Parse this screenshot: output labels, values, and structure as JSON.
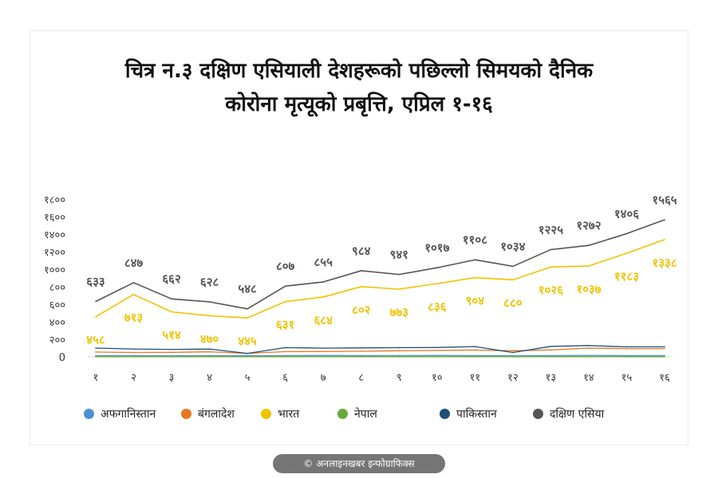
{
  "title_line1": "चित्र न.३ दक्षिण एसियाली देशहरूको पछिल्लो सिमयको दैनिक",
  "title_line2": "कोरोना मृत्यूको प्रबृत्ति, एप्रिल १-१६",
  "credit": "© अनलाइनखबर इन्फोग्राफिक्स",
  "chart_data": {
    "type": "line",
    "x": [
      "१",
      "२",
      "३",
      "४",
      "५",
      "६",
      "७",
      "८",
      "९",
      "१०",
      "११",
      "१२",
      "१३",
      "१४",
      "१५",
      "१६"
    ],
    "ylim": [
      0,
      1800
    ],
    "yticks": [
      {
        "value": 0,
        "label": "0"
      },
      {
        "value": 200,
        "label": "२००"
      },
      {
        "value": 400,
        "label": "४००"
      },
      {
        "value": 600,
        "label": "६००"
      },
      {
        "value": 800,
        "label": "८००"
      },
      {
        "value": 1000,
        "label": "१०००"
      },
      {
        "value": 1200,
        "label": "१२००"
      },
      {
        "value": 1400,
        "label": "१४००"
      },
      {
        "value": 1600,
        "label": "१६००"
      },
      {
        "value": 1800,
        "label": "१८००"
      }
    ],
    "series": [
      {
        "name": "अफगानिस्तान",
        "color": "#4a90d9",
        "values": [
          15,
          15,
          14,
          15,
          14,
          15,
          16,
          15,
          15,
          16,
          15,
          14,
          15,
          16,
          15,
          15
        ]
      },
      {
        "name": "बंगलादेश",
        "color": "#e87722",
        "values": [
          55,
          50,
          52,
          58,
          40,
          60,
          62,
          65,
          70,
          75,
          78,
          70,
          80,
          100,
          95,
          95
        ]
      },
      {
        "name": "भारत",
        "color": "#f2c200",
        "values": [
          458,
          713,
          514,
          470,
          445,
          631,
          684,
          802,
          773,
          836,
          904,
          880,
          1026,
          1037,
          1183,
          1338
        ],
        "labels": [
          "४५८",
          "७१३",
          "५१४",
          "४७०",
          "४४५",
          "६३१",
          "६८४",
          "८०२",
          "७७३",
          "८३६",
          "९०४",
          "८८०",
          "१०२६",
          "१०३७",
          "११८३",
          "१३३८"
        ]
      },
      {
        "name": "नेपाल",
        "color": "#6aab3b",
        "values": [
          2,
          2,
          2,
          2,
          3,
          2,
          2,
          3,
          2,
          2,
          3,
          2,
          3,
          2,
          3,
          2
        ]
      },
      {
        "name": "पाकिस्तान",
        "color": "#1f4e79",
        "values": [
          100,
          90,
          85,
          90,
          40,
          105,
          100,
          103,
          105,
          107,
          118,
          50,
          120,
          130,
          115,
          115
        ]
      },
      {
        "name": "दक्षिण एसिया",
        "color": "#555555",
        "values": [
          633,
          847,
          662,
          628,
          548,
          807,
          855,
          984,
          941,
          1017,
          1108,
          1034,
          1225,
          1272,
          1406,
          1565
        ],
        "labels": [
          "६३३",
          "८४७",
          "६६२",
          "६२८",
          "५४८",
          "८०७",
          "८५५",
          "९८४",
          "९४१",
          "१०१७",
          "११०८",
          "१०३४",
          "१२२५",
          "१२७२",
          "१४०६",
          "१५६५"
        ]
      }
    ]
  },
  "legend": [
    {
      "label": "अफगानिस्तान",
      "color": "#4a90d9"
    },
    {
      "label": "बंगलादेश",
      "color": "#e87722"
    },
    {
      "label": "भारत",
      "color": "#f2c200"
    },
    {
      "label": "नेपाल",
      "color": "#6aab3b"
    },
    {
      "label": "पाकिस्तान",
      "color": "#1f4e79"
    },
    {
      "label": "दक्षिण एसिया",
      "color": "#555555"
    }
  ]
}
